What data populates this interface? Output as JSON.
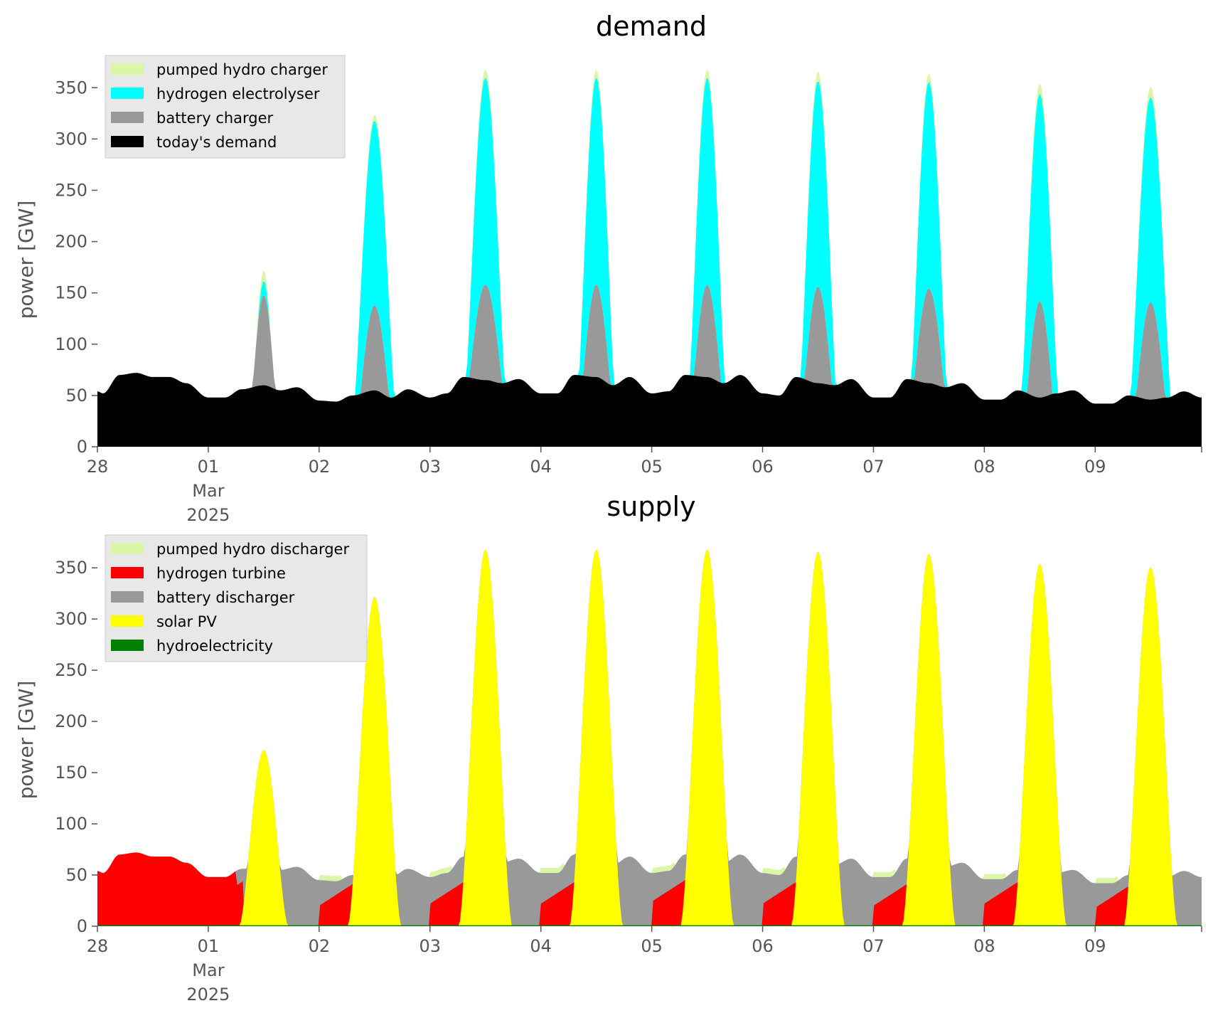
{
  "colors": {
    "pumped_hydro": "#d9f7a6",
    "hydrogen": "#00ffff",
    "hydrogen_turbine": "#ff0000",
    "battery": "#999999",
    "demand": "#000000",
    "solar": "#ffff00",
    "hydro": "#008000",
    "legend_bg": "#e8e8e8"
  },
  "x_ticks": [
    "28",
    "01",
    "02",
    "03",
    "04",
    "05",
    "06",
    "07",
    "08",
    "09"
  ],
  "x_month_label": "Mar",
  "x_year_label": "2025",
  "chart_data": [
    {
      "type": "area",
      "stacked": true,
      "title": "demand",
      "ylabel": "power [GW]",
      "xlabel": "",
      "x": [
        "2025-02-28",
        "2025-03-01",
        "2025-03-02",
        "2025-03-03",
        "2025-03-04",
        "2025-03-05",
        "2025-03-06",
        "2025-03-07",
        "2025-03-08",
        "2025-03-09"
      ],
      "x_unit": "day",
      "x_range": [
        "2025-02-28 00:00",
        "2025-03-09 23:00"
      ],
      "ylim": [
        0,
        380
      ],
      "yticks": [
        0,
        50,
        100,
        150,
        200,
        250,
        300,
        350
      ],
      "grid": false,
      "legend_position": "top-left",
      "series": [
        {
          "name": "today's demand",
          "color_key": "demand",
          "baseline": "demand_base"
        },
        {
          "name": "battery charger",
          "color_key": "battery",
          "peak": [
            0,
            148,
            138,
            158,
            158,
            158,
            156,
            154,
            142,
            141
          ],
          "width": [
            0,
            0.16,
            0.2,
            0.24,
            0.2,
            0.2,
            0.2,
            0.22,
            0.18,
            0.2
          ]
        },
        {
          "name": "hydrogen electrolyser",
          "color_key": "hydrogen",
          "peak": [
            0,
            162,
            318,
            360,
            360,
            360,
            357,
            356,
            344,
            341
          ],
          "width": [
            0,
            0.14,
            0.22,
            0.22,
            0.2,
            0.2,
            0.2,
            0.2,
            0.2,
            0.22
          ]
        },
        {
          "name": "pumped hydro charger",
          "color_key": "pumped_hydro",
          "peak": [
            0,
            172,
            324,
            368,
            368,
            368,
            366,
            364,
            354,
            351
          ],
          "width": [
            0,
            0.14,
            0.22,
            0.22,
            0.2,
            0.2,
            0.2,
            0.2,
            0.2,
            0.22
          ]
        }
      ],
      "demand_base": {
        "times": [
          0,
          0.05,
          0.2,
          0.35,
          0.5,
          0.65,
          0.8,
          1.0,
          1.15,
          1.3,
          1.5,
          1.65,
          1.8,
          2.0,
          2.15,
          2.3,
          2.5,
          2.65,
          2.8,
          3.0,
          3.15,
          3.3,
          3.5,
          3.65,
          3.8,
          4.0,
          4.15,
          4.3,
          4.5,
          4.65,
          4.8,
          5.0,
          5.15,
          5.3,
          5.5,
          5.65,
          5.8,
          6.0,
          6.15,
          6.3,
          6.5,
          6.65,
          6.8,
          7.0,
          7.15,
          7.3,
          7.5,
          7.65,
          7.8,
          8.0,
          8.15,
          8.3,
          8.5,
          8.65,
          8.8,
          9.0,
          9.15,
          9.3,
          9.5,
          9.65,
          9.8,
          9.96
        ],
        "values": [
          54,
          52,
          70,
          72,
          68,
          68,
          62,
          48,
          48,
          56,
          60,
          55,
          58,
          45,
          44,
          50,
          55,
          48,
          56,
          48,
          52,
          68,
          65,
          62,
          66,
          52,
          52,
          70,
          68,
          60,
          68,
          52,
          54,
          70,
          68,
          62,
          70,
          52,
          50,
          68,
          62,
          60,
          66,
          48,
          48,
          66,
          62,
          58,
          62,
          46,
          46,
          55,
          48,
          52,
          55,
          42,
          42,
          50,
          46,
          48,
          54,
          48
        ]
      }
    },
    {
      "type": "area",
      "stacked": true,
      "title": "supply",
      "ylabel": "power [GW]",
      "xlabel": "",
      "x": [
        "2025-02-28",
        "2025-03-01",
        "2025-03-02",
        "2025-03-03",
        "2025-03-04",
        "2025-03-05",
        "2025-03-06",
        "2025-03-07",
        "2025-03-08",
        "2025-03-09"
      ],
      "x_unit": "day",
      "x_range": [
        "2025-02-28 00:00",
        "2025-03-09 23:00"
      ],
      "ylim": [
        0,
        380
      ],
      "yticks": [
        0,
        50,
        100,
        150,
        200,
        250,
        300,
        350
      ],
      "grid": false,
      "legend_position": "top-left",
      "series": [
        {
          "name": "hydroelectricity",
          "color_key": "hydro",
          "level": 1
        },
        {
          "name": "solar PV",
          "color_key": "solar",
          "peak": [
            0,
            172,
            322,
            368,
            368,
            368,
            366,
            364,
            354,
            351
          ],
          "width": [
            0,
            0.22,
            0.24,
            0.24,
            0.24,
            0.24,
            0.24,
            0.24,
            0.24,
            0.24
          ]
        },
        {
          "name": "battery discharger",
          "color_key": "battery",
          "baseline": "demand_base"
        },
        {
          "name": "hydrogen turbine",
          "color_key": "hydrogen_turbine",
          "night_level": [
            55,
            42,
            40,
            42,
            42,
            44,
            42,
            40,
            42,
            38
          ]
        },
        {
          "name": "pumped hydro discharger",
          "color_key": "pumped_hydro",
          "level": 5
        }
      ]
    }
  ]
}
